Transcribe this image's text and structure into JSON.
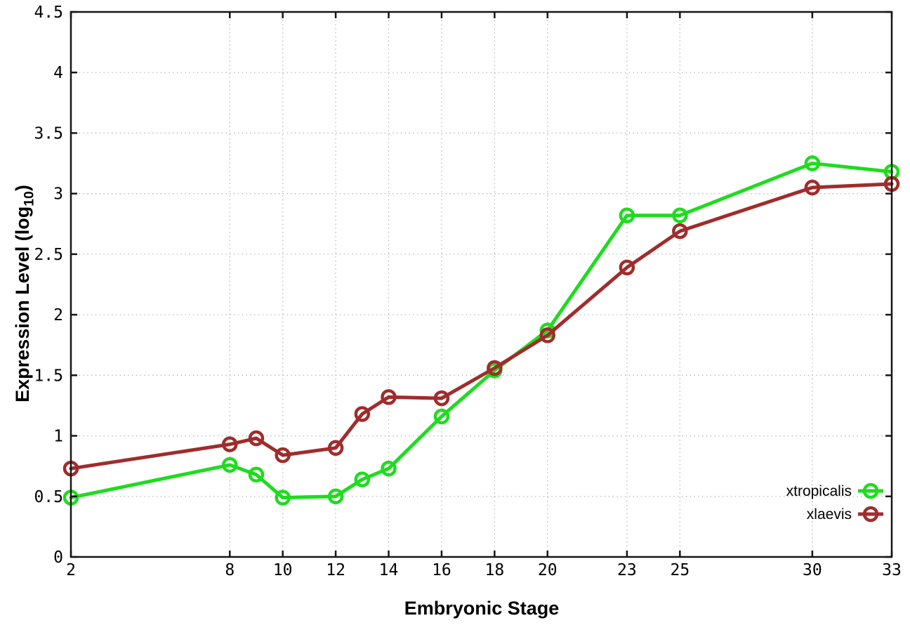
{
  "figure": {
    "background": "#ffffff",
    "ylabel_main": "Expression Level (log",
    "ylabel_sub": "10",
    "ylabel_end": ")"
  },
  "chart_data": {
    "type": "line",
    "title": "",
    "xlabel": "Embryonic Stage",
    "ylabel": "Expression Level (log10)",
    "x": [
      2,
      8,
      9,
      10,
      12,
      13,
      14,
      16,
      18,
      20,
      23,
      25,
      30,
      33
    ],
    "series": [
      {
        "name": "xtropicalis",
        "color": "#1edc1e",
        "marker": "open-circle",
        "values": [
          0.49,
          0.76,
          0.68,
          0.49,
          0.5,
          0.64,
          0.73,
          1.16,
          1.54,
          1.87,
          2.82,
          2.82,
          3.25,
          3.18
        ]
      },
      {
        "name": "xlaevis",
        "color": "#a02c2c",
        "marker": "open-circle",
        "values": [
          0.73,
          0.93,
          0.98,
          0.84,
          0.9,
          1.18,
          1.32,
          1.31,
          1.56,
          1.83,
          2.39,
          2.69,
          3.05,
          3.08
        ]
      }
    ],
    "xticks": [
      2,
      8,
      10,
      12,
      14,
      16,
      18,
      20,
      23,
      25,
      30,
      33
    ],
    "yticks": [
      0,
      0.5,
      1,
      1.5,
      2,
      2.5,
      3,
      3.5,
      4,
      4.5
    ],
    "xlim": [
      2,
      33
    ],
    "ylim": [
      0,
      4.5
    ],
    "grid": true,
    "grid_style": "dotted",
    "legend_position": "inside-bottom-right",
    "legend": [
      "xtropicalis",
      "xlaevis"
    ],
    "border_color": "#161616",
    "grid_color": "#b8b8b8"
  }
}
